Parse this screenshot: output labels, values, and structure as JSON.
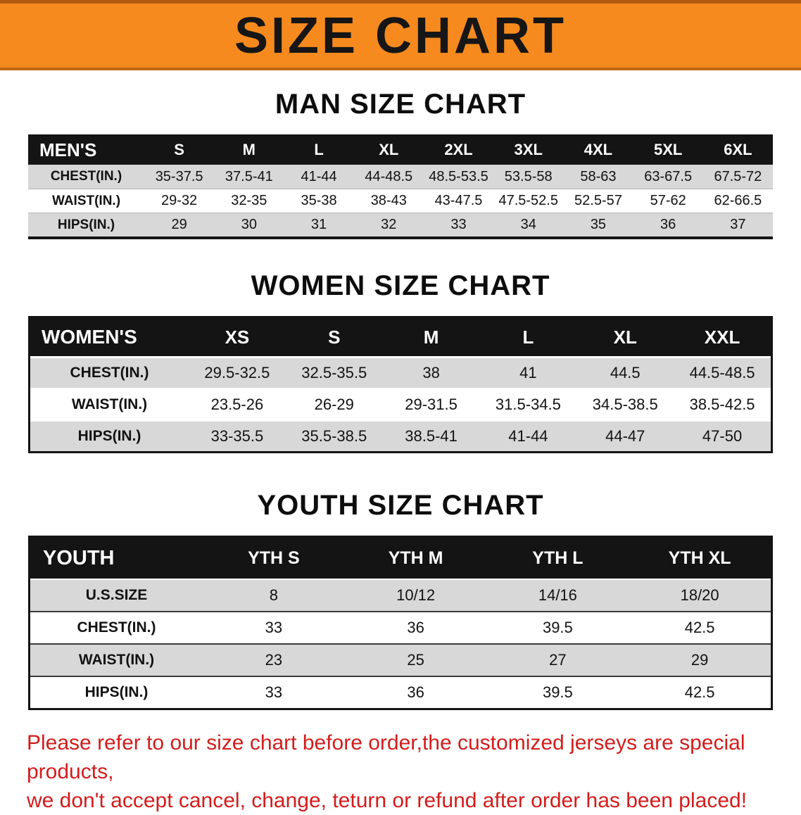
{
  "banner": {
    "title": "SIZE CHART"
  },
  "men": {
    "heading": "MAN SIZE CHART",
    "label": "MEN'S",
    "columns": [
      "S",
      "M",
      "L",
      "XL",
      "2XL",
      "3XL",
      "4XL",
      "5XL",
      "6XL"
    ],
    "rows": [
      {
        "label": "CHEST(IN.)",
        "values": [
          "35-37.5",
          "37.5-41",
          "41-44",
          "44-48.5",
          "48.5-53.5",
          "53.5-58",
          "58-63",
          "63-67.5",
          "67.5-72"
        ]
      },
      {
        "label": "WAIST(IN.)",
        "values": [
          "29-32",
          "32-35",
          "35-38",
          "38-43",
          "43-47.5",
          "47.5-52.5",
          "52.5-57",
          "57-62",
          "62-66.5"
        ]
      },
      {
        "label": "HIPS(IN.)",
        "values": [
          "29",
          "30",
          "31",
          "32",
          "33",
          "34",
          "35",
          "36",
          "37"
        ]
      }
    ]
  },
  "women": {
    "heading": "WOMEN SIZE CHART",
    "label": "WOMEN'S",
    "columns": [
      "XS",
      "S",
      "M",
      "L",
      "XL",
      "XXL"
    ],
    "rows": [
      {
        "label": "CHEST(IN.)",
        "values": [
          "29.5-32.5",
          "32.5-35.5",
          "38",
          "41",
          "44.5",
          "44.5-48.5"
        ]
      },
      {
        "label": "WAIST(IN.)",
        "values": [
          "23.5-26",
          "26-29",
          "29-31.5",
          "31.5-34.5",
          "34.5-38.5",
          "38.5-42.5"
        ]
      },
      {
        "label": "HIPS(IN.)",
        "values": [
          "33-35.5",
          "35.5-38.5",
          "38.5-41",
          "41-44",
          "44-47",
          "47-50"
        ]
      }
    ]
  },
  "youth": {
    "heading": "YOUTH SIZE CHART",
    "label": "YOUTH",
    "columns": [
      "YTH S",
      "YTH M",
      "YTH L",
      "YTH XL"
    ],
    "rows": [
      {
        "label": "U.S.SIZE",
        "values": [
          "8",
          "10/12",
          "14/16",
          "18/20"
        ]
      },
      {
        "label": "CHEST(IN.)",
        "values": [
          "33",
          "36",
          "39.5",
          "42.5"
        ]
      },
      {
        "label": "WAIST(IN.)",
        "values": [
          "23",
          "25",
          "27",
          "29"
        ]
      },
      {
        "label": "HIPS(IN.)",
        "values": [
          "33",
          "36",
          "39.5",
          "42.5"
        ]
      }
    ]
  },
  "footer": {
    "line1": "Please refer to our size chart before order,the customized jerseys are special products,",
    "line2": "we don't accept cancel, change, teturn or refund after order has been placed!"
  }
}
